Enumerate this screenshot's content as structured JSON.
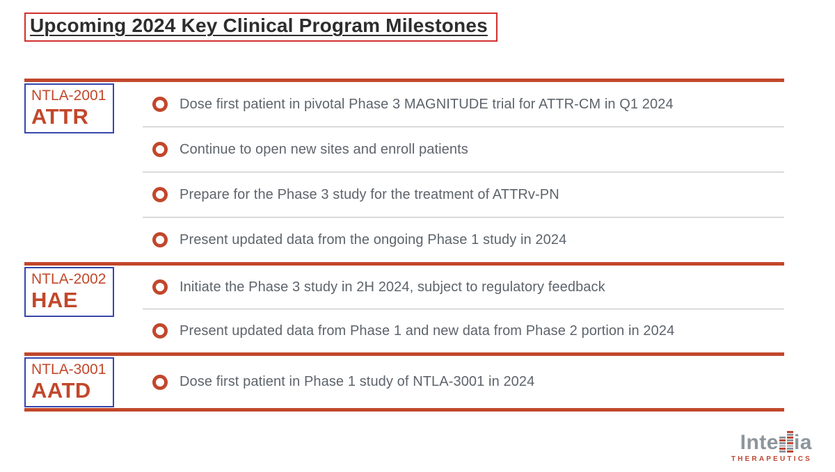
{
  "colors": {
    "accent_red": "#c2472b",
    "title_border_red": "#d12f2f",
    "title_text": "#2d2d2d",
    "label_border_blue": "#3646ad",
    "milestone_text": "#5d646b",
    "separator_gray": "#bdbdbd",
    "logo_gray": "#8d959c",
    "logo_red": "#bc4733",
    "logo_lightgray": "#b5bbc0"
  },
  "title": {
    "text": "Upcoming 2024 Key Clinical Program Milestones"
  },
  "sections": [
    {
      "program": "NTLA-2001",
      "indication": "ATTR",
      "milestones": [
        "Dose first patient in pivotal Phase 3 MAGNITUDE trial for ATTR-CM in Q1 2024",
        "Continue to open new sites and enroll patients",
        "Prepare for the Phase 3 study for the treatment of ATTRv-PN",
        "Present updated data from the ongoing Phase 1 study in 2024"
      ]
    },
    {
      "program": "NTLA-2002",
      "indication": "HAE",
      "milestones": [
        "Initiate the Phase 3 study in 2H 2024, subject to regulatory feedback",
        "Present updated data from Phase 1 and new data from Phase 2 portion in 2024"
      ]
    },
    {
      "program": "NTLA-3001",
      "indication": "AATD",
      "milestones": [
        "Dose first patient in Phase 1 study of NTLA-3001 in 2024"
      ]
    }
  ],
  "logo": {
    "text_before": "Inte",
    "text_after": "ia",
    "tagline": "THERAPEUTICS",
    "ladder_left": [
      "gray",
      "red",
      "gray",
      "lightgray",
      "red",
      "gray"
    ],
    "ladder_right": [
      "red",
      "gray",
      "red",
      "gray",
      "red",
      "lightgray",
      "gray",
      "red"
    ]
  }
}
